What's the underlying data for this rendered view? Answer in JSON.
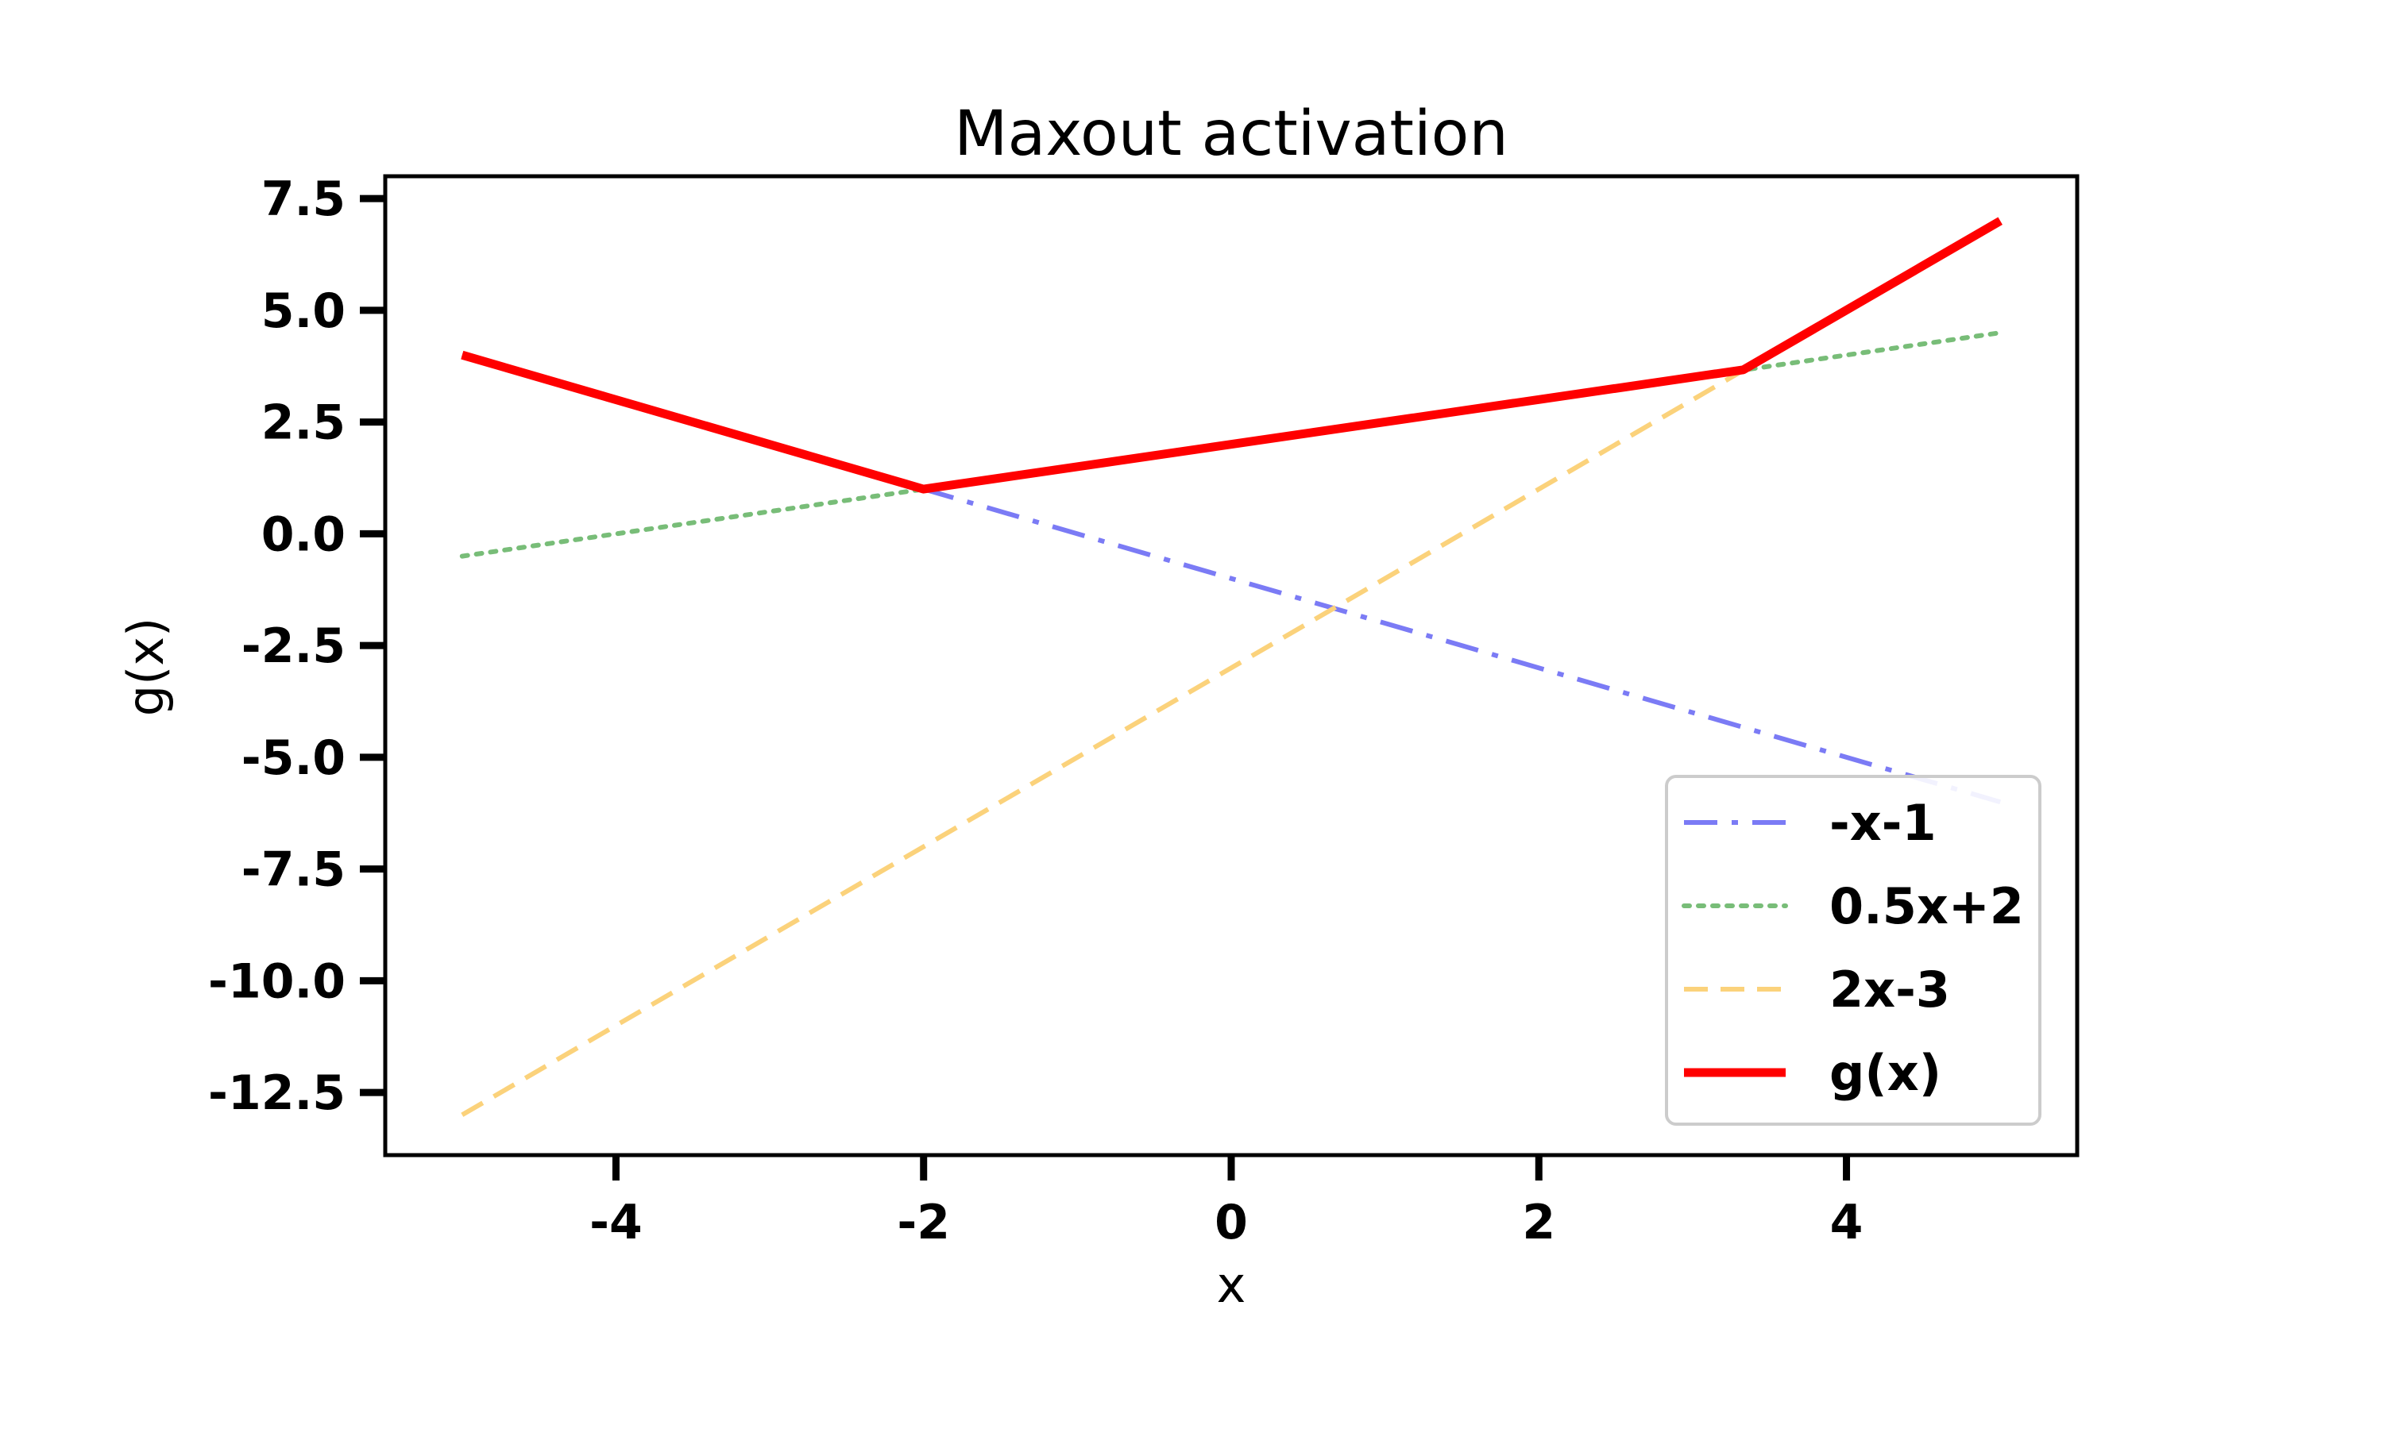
{
  "chart_data": {
    "type": "line",
    "title": "Maxout activation",
    "xlabel": "x",
    "ylabel": "g(x)",
    "xlim": [
      -5.5,
      5.5
    ],
    "ylim": [
      -13.9,
      8.0
    ],
    "xticks": [
      -4,
      -2,
      0,
      2,
      4
    ],
    "xtick_labels": [
      "-4",
      "-2",
      "0",
      "2",
      "4"
    ],
    "yticks": [
      7.5,
      5.0,
      2.5,
      0.0,
      -2.5,
      -5.0,
      -7.5,
      -10.0,
      -12.5
    ],
    "ytick_labels": [
      "7.5",
      "5.0",
      "2.5",
      "0.0",
      "-2.5",
      "-5.0",
      "-7.5",
      "-10.0",
      "-12.5"
    ],
    "grid": false,
    "legend_position": "lower-right",
    "series": [
      {
        "name": "-x-1",
        "color": "#7b7bf5",
        "style": "dashdot",
        "x": [
          -5,
          5
        ],
        "y": [
          4,
          -6
        ]
      },
      {
        "name": "0.5x+2",
        "color": "#78bd78",
        "style": "dotted",
        "x": [
          -5,
          5
        ],
        "y": [
          -0.5,
          4.5
        ]
      },
      {
        "name": "2x-3",
        "color": "#fbd27b",
        "style": "dashed",
        "x": [
          -5,
          5
        ],
        "y": [
          -13,
          7
        ]
      },
      {
        "name": "g(x)",
        "color": "#ff0000",
        "style": "solid",
        "x": [
          -5,
          -2,
          3.33,
          5
        ],
        "y": [
          4,
          1,
          3.67,
          7
        ]
      }
    ]
  }
}
